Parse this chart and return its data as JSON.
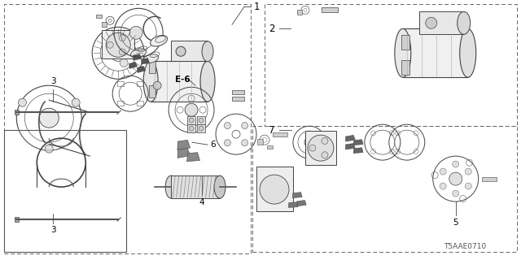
{
  "bg_color": "#ffffff",
  "text_color": "#000000",
  "line_color": "#555555",
  "catalog_code": "T5AAE0710",
  "fig_width": 6.4,
  "fig_height": 3.2,
  "dpi": 100,
  "label_font_size": 7.5,
  "code_font_size": 6.5
}
